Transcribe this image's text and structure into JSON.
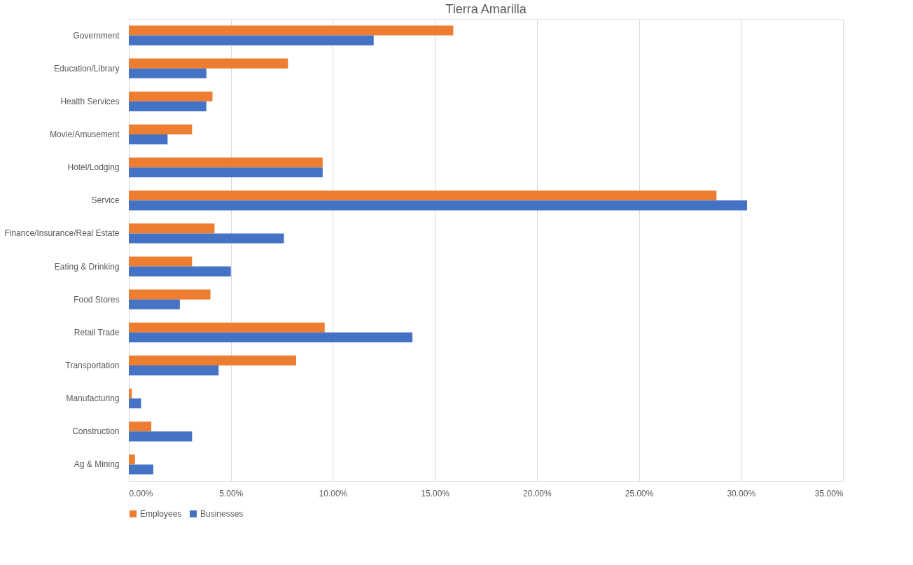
{
  "chart_data": {
    "type": "bar",
    "orientation": "horizontal",
    "title": "Tierra Amarilla",
    "categories": [
      "Government",
      "Education/Library",
      "Health Services",
      "Movie/Amusement",
      "Hotel/Lodging",
      "Service",
      "Finance/Insurance/Real Estate",
      "Eating & Drinking",
      "Food Stores",
      "Retail Trade",
      "Transportation",
      "Manufacturing",
      "Construction",
      "Ag & Mining"
    ],
    "series": [
      {
        "name": "Employees",
        "color": "#ed7d31",
        "values": [
          15.9,
          7.8,
          4.1,
          3.1,
          9.5,
          28.8,
          4.2,
          3.1,
          4.0,
          9.6,
          8.2,
          0.15,
          1.1,
          0.3
        ]
      },
      {
        "name": "Businesses",
        "color": "#4472c4",
        "values": [
          12.0,
          3.8,
          3.8,
          1.9,
          9.5,
          30.3,
          7.6,
          5.0,
          2.5,
          13.9,
          4.4,
          0.6,
          3.1,
          1.2
        ]
      }
    ],
    "xlim": [
      0,
      35
    ],
    "xticks": [
      {
        "value": 0,
        "label": "0.00%"
      },
      {
        "value": 5,
        "label": "5.00%"
      },
      {
        "value": 10,
        "label": "10.00%"
      },
      {
        "value": 15,
        "label": "15.00%"
      },
      {
        "value": 20,
        "label": "20.00%"
      },
      {
        "value": 25,
        "label": "25.00%"
      },
      {
        "value": 30,
        "label": "30.00%"
      },
      {
        "value": 35,
        "label": "35.00%"
      }
    ],
    "grid": "x",
    "legend": "bottom"
  }
}
